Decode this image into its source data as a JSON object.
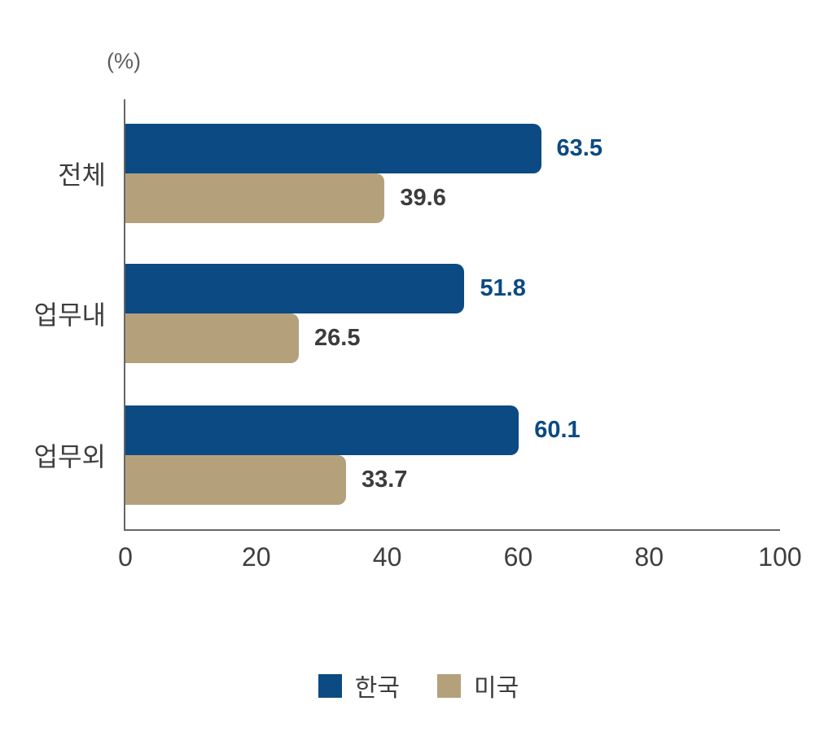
{
  "chart_data": {
    "type": "bar",
    "orientation": "horizontal",
    "title": "",
    "unit_label": "(%)",
    "categories": [
      "전체",
      "업무내",
      "업무외"
    ],
    "category_keys": [
      "total",
      "within-work",
      "outside-work"
    ],
    "series": [
      {
        "key": "korea",
        "name": "한국",
        "color": "#0B4A82",
        "value_label_color": "#0B4A82",
        "values": [
          63.5,
          51.8,
          60.1
        ]
      },
      {
        "key": "usa",
        "name": "미국",
        "color": "#B4A17C",
        "value_label_color": "#3C3C3C",
        "values": [
          39.6,
          26.5,
          33.7
        ]
      }
    ],
    "xlim": [
      0,
      100
    ],
    "xticks": [
      "0",
      "20",
      "40",
      "60",
      "80",
      "100"
    ],
    "grid": false,
    "legend_position": "bottom"
  },
  "colors": {
    "background": "#FFFFFF",
    "axis_line": "#666666",
    "tick_text": "#3E3E3E",
    "category_text": "#3E3E3E",
    "unit_text": "#5E5E5E"
  }
}
